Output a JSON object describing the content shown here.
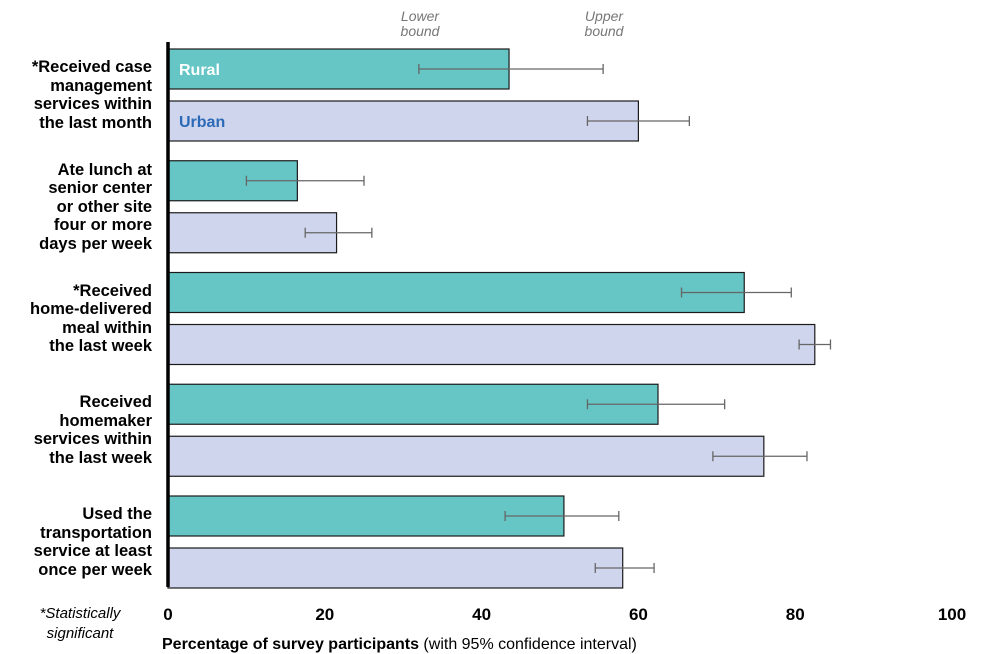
{
  "chart_data": {
    "type": "bar",
    "orientation": "horizontal",
    "categories": [
      "*Received case management services within the last month",
      "Ate lunch at senior center or other site four or more days per week",
      "*Received home-delivered meal within the last week",
      "Received homemaker services within the last week",
      "Used the transportation service at least once per week"
    ],
    "category_lines": [
      [
        "*Received case",
        "management",
        "services within",
        "the last month"
      ],
      [
        "Ate lunch at",
        "senior center",
        "or other site",
        "four or more",
        "days per week"
      ],
      [
        "*Received",
        "home-delivered",
        "meal within",
        "the last week"
      ],
      [
        "Received",
        "homemaker",
        "services within",
        "the last week"
      ],
      [
        "Used the",
        "transportation",
        "service at least",
        "once per week"
      ]
    ],
    "series": [
      {
        "name": "Rural",
        "color": "#66c5c5",
        "values": [
          43.5,
          16.5,
          73.5,
          62.5,
          50.5
        ],
        "lower": [
          32,
          10,
          65.5,
          53.5,
          43
        ],
        "upper": [
          55.5,
          25,
          79.5,
          71,
          57.5
        ]
      },
      {
        "name": "Urban",
        "color": "#d0d5ee",
        "values": [
          60,
          21.5,
          82.5,
          76,
          58
        ],
        "lower": [
          53.5,
          17.5,
          80.5,
          69.5,
          54.5
        ],
        "upper": [
          66.5,
          26,
          84.5,
          81.5,
          62
        ]
      }
    ],
    "legend_text_colors": {
      "Rural": "#ffffff",
      "Urban": "#2b6ab6"
    },
    "bound_labels": {
      "lower": "Lower bound",
      "upper": "Upper bound"
    },
    "xlabel_bold": "Percentage of survey participants",
    "xlabel_rest": " (with 95% confidence interval)",
    "xticks": [
      "0",
      "20",
      "40",
      "60",
      "80",
      "100"
    ],
    "xlim": [
      0,
      100
    ],
    "footnote": "*Statistically significant",
    "grid": false
  }
}
